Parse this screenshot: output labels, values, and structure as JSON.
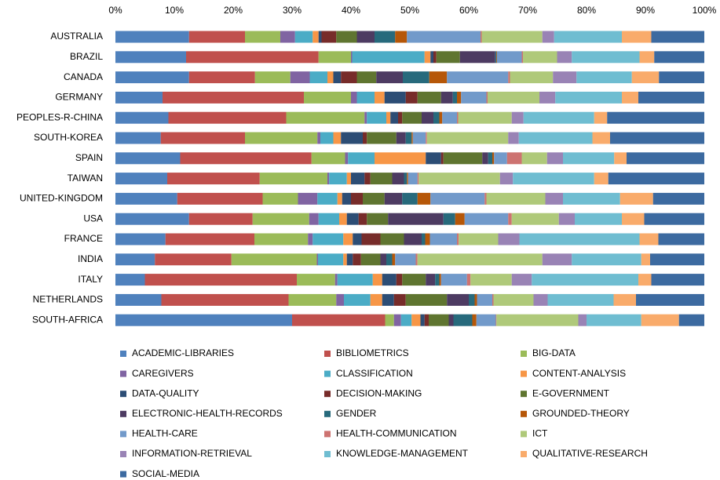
{
  "chart_data": {
    "type": "stacked-bar-horizontal",
    "categories": [
      "AUSTRALIA",
      "BRAZIL",
      "CANADA",
      "GERMANY",
      "PEOPLES-R-CHINA",
      "SOUTH-KOREA",
      "SPAIN",
      "TAIWAN",
      "UNITED-KINGDOM",
      "USA",
      "FRANCE",
      "INDIA",
      "ITALY",
      "NETHERLANDS",
      "SOUTH-AFRICA"
    ],
    "xlim": [
      0,
      100
    ],
    "xticks": [
      {
        "value": 0,
        "label": "0%"
      },
      {
        "value": 10,
        "label": "10%"
      },
      {
        "value": 20,
        "label": "20%"
      },
      {
        "value": 30,
        "label": "30%"
      },
      {
        "value": 40,
        "label": "40%"
      },
      {
        "value": 50,
        "label": "50%"
      },
      {
        "value": 60,
        "label": "60%"
      },
      {
        "value": 70,
        "label": "70%"
      },
      {
        "value": 80,
        "label": "80%"
      },
      {
        "value": 90,
        "label": "90%"
      },
      {
        "value": 100,
        "label": "100%"
      }
    ],
    "grid": false,
    "legend": "bottom",
    "series": [
      {
        "name": "ACADEMIC-LIBRARIES",
        "color": "#4f81bd",
        "values": [
          12.5,
          12,
          12.5,
          8,
          9,
          7.7,
          11,
          8.8,
          10.5,
          12.5,
          8.5,
          6.7,
          5,
          7.8,
          30
        ]
      },
      {
        "name": "BIBLIOMETRICS",
        "color": "#c0504d",
        "values": [
          9.5,
          22.5,
          11.2,
          24,
          20,
          14.3,
          22.3,
          15.7,
          14.5,
          10.8,
          15.1,
          13,
          25.8,
          21.6,
          15.8
        ]
      },
      {
        "name": "BIG-DATA",
        "color": "#9bbb59",
        "values": [
          6,
          5.5,
          6,
          8,
          13.3,
          12.3,
          5.7,
          11.5,
          6,
          9.6,
          9.1,
          14.5,
          6.5,
          8.1,
          1.5
        ]
      },
      {
        "name": "CAREGIVERS",
        "color": "#8064a2",
        "values": [
          2.5,
          0.2,
          3.3,
          1,
          0.4,
          0.5,
          0.5,
          0.3,
          3.3,
          1.6,
          0.8,
          0.2,
          0.4,
          1.3,
          1.2
        ]
      },
      {
        "name": "CLASSIFICATION",
        "color": "#4bacc6",
        "values": [
          3,
          12.3,
          3,
          3,
          3.3,
          2.2,
          4.5,
          3,
          3.4,
          3.5,
          5.2,
          4.3,
          6,
          4.5,
          1.8
        ]
      },
      {
        "name": "CONTENT-ANALYSIS",
        "color": "#f79646",
        "values": [
          1,
          1,
          1,
          1.7,
          0.7,
          1.3,
          8.7,
          0.7,
          0.8,
          1.3,
          1.6,
          0.6,
          1.6,
          2,
          1.5
        ]
      },
      {
        "name": "DATA-QUALITY",
        "color": "#2c4d75",
        "values": [
          0.5,
          0.5,
          1.3,
          3.6,
          1.3,
          3.7,
          2.6,
          2.3,
          1.5,
          2,
          1.5,
          1,
          2.4,
          2,
          0.7
        ]
      },
      {
        "name": "DECISION-MAKING",
        "color": "#772c2a",
        "values": [
          2.5,
          0.5,
          2.7,
          2,
          0.7,
          0.7,
          0.4,
          1,
          2,
          1.4,
          3.2,
          1.4,
          1,
          2,
          0.7
        ]
      },
      {
        "name": "E-GOVERNMENT",
        "color": "#5f7530",
        "values": [
          3.5,
          4,
          3.3,
          4,
          3.3,
          5,
          6.6,
          3.7,
          3.7,
          3.6,
          4,
          3.3,
          4,
          7,
          3.4
        ]
      },
      {
        "name": "ELECTRONIC-HEALTH-RECORDS",
        "color": "#4d3b62",
        "values": [
          3,
          6,
          4.5,
          2,
          2,
          1.6,
          1,
          2,
          3,
          9.4,
          3,
          1,
          1.6,
          3.7,
          0.8
        ]
      },
      {
        "name": "GENDER",
        "color": "#276a7c",
        "values": [
          3.5,
          0.2,
          4.5,
          0.7,
          1,
          1,
          0.7,
          0.5,
          2.6,
          2,
          0.6,
          1,
          0.7,
          1,
          3.2
        ]
      },
      {
        "name": "GROUNDED-THEORY",
        "color": "#b65708",
        "values": [
          2,
          0.1,
          3,
          0.7,
          0.5,
          0.2,
          0.3,
          0.2,
          2.2,
          1.6,
          0.8,
          0.5,
          0.3,
          0.4,
          0.7
        ]
      },
      {
        "name": "HEALTH-CARE",
        "color": "#729aca",
        "values": [
          12.5,
          4.2,
          10.4,
          4.3,
          2.5,
          2.2,
          2.2,
          1.6,
          9.2,
          7.4,
          4.6,
          3.5,
          4.4,
          2.6,
          3.3
        ]
      },
      {
        "name": "HEALTH-COMMUNICATION",
        "color": "#cd7371",
        "values": [
          0.2,
          0.2,
          0.3,
          0.2,
          0.2,
          0.2,
          2.5,
          0.2,
          0.3,
          0.6,
          0.3,
          0.3,
          0.6,
          0.2,
          0.1
        ]
      },
      {
        "name": "ICT",
        "color": "#afc97a",
        "values": [
          10.3,
          5.8,
          7.3,
          8.8,
          9.1,
          13.8,
          4.3,
          13.8,
          10,
          8,
          6.7,
          21.2,
          7,
          6.8,
          13.9
        ]
      },
      {
        "name": "INFORMATION-RETRIEVAL",
        "color": "#9983b5",
        "values": [
          2,
          2.5,
          4,
          2.7,
          2,
          1.8,
          2.7,
          2.2,
          3,
          2.7,
          3.6,
          5,
          3.4,
          2.4,
          1.4
        ]
      },
      {
        "name": "KNOWLEDGE-MANAGEMENT",
        "color": "#6fbdd1",
        "values": [
          11.5,
          11.5,
          9.4,
          11.3,
          12,
          12.5,
          8.7,
          13.8,
          9.7,
          8,
          20.4,
          11.8,
          18.1,
          11.2,
          9.3
        ]
      },
      {
        "name": "QUALITATIVE-RESEARCH",
        "color": "#f9ab6b",
        "values": [
          5,
          2.5,
          4.6,
          2.8,
          2.2,
          3,
          2.1,
          2.4,
          5.6,
          3.8,
          3.2,
          1.5,
          2.2,
          3.8,
          6.4
        ]
      },
      {
        "name": "SOCIAL-MEDIA",
        "color": "#3c6aa0",
        "values": [
          9,
          8.5,
          7.7,
          11.2,
          16.5,
          16,
          13.2,
          16.3,
          8.7,
          10.2,
          7.8,
          9.2,
          9,
          11.6,
          4.3
        ]
      }
    ]
  }
}
